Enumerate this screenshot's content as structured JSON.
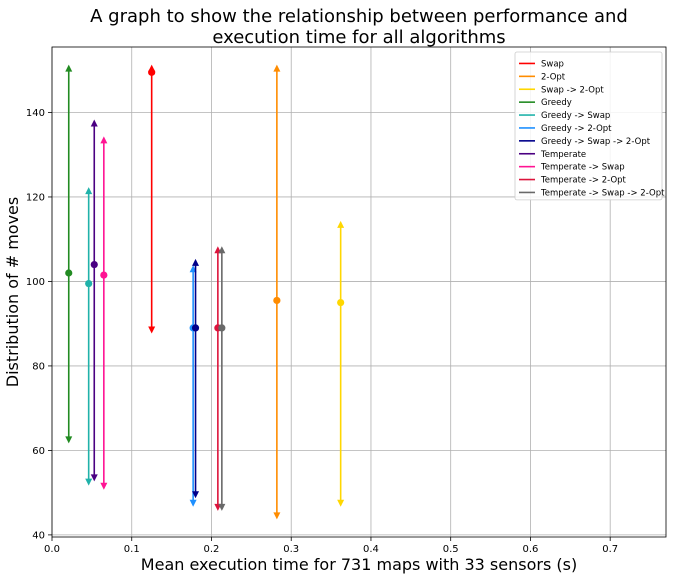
{
  "chart_data": {
    "type": "scatter",
    "title_line1": "A graph to show the relationship between performance and",
    "title_line2": "execution time for all algorithms",
    "xlabel": "Mean execution time for 731 maps with 33 sensors (s)",
    "ylabel": "Distribution of # moves",
    "xlim": [
      0.0,
      0.77
    ],
    "ylim": [
      39.5,
      155.5
    ],
    "xticks": [
      "0.0",
      "0.1",
      "0.2",
      "0.3",
      "0.4",
      "0.5",
      "0.6",
      "0.7"
    ],
    "xtick_values": [
      0.0,
      0.1,
      0.2,
      0.3,
      0.4,
      0.5,
      0.6,
      0.7
    ],
    "yticks": [
      "40",
      "60",
      "80",
      "100",
      "120",
      "140"
    ],
    "ytick_values": [
      40,
      60,
      80,
      100,
      120,
      140
    ],
    "grid": true,
    "legend_position": "top-right",
    "series": [
      {
        "name": "Swap",
        "color": "#ff0000",
        "x": 0.125,
        "mean": 149.5,
        "min": 88.5,
        "max": 150.5
      },
      {
        "name": "2-Opt",
        "color": "#ff8c00",
        "x": 0.282,
        "mean": 95.5,
        "min": 44.5,
        "max": 150.5
      },
      {
        "name": "Swap -> 2-Opt",
        "color": "#ffd700",
        "x": 0.362,
        "mean": 95.0,
        "min": 47.5,
        "max": 113.5
      },
      {
        "name": "Greedy",
        "color": "#228b22",
        "x": 0.021,
        "mean": 102.0,
        "min": 62.5,
        "max": 150.5
      },
      {
        "name": "Greedy -> Swap",
        "color": "#20b2aa",
        "x": 0.046,
        "mean": 99.5,
        "min": 52.5,
        "max": 121.5
      },
      {
        "name": "Greedy -> 2-Opt",
        "color": "#1e90ff",
        "x": 0.177,
        "mean": 89.0,
        "min": 47.5,
        "max": 103.0
      },
      {
        "name": "Greedy -> Swap -> 2-Opt",
        "color": "#00008b",
        "x": 0.18,
        "mean": 89.0,
        "min": 49.5,
        "max": 104.5
      },
      {
        "name": "Temperate",
        "color": "#4b0082",
        "x": 0.053,
        "mean": 104.0,
        "min": 53.5,
        "max": 137.5
      },
      {
        "name": "Temperate -> Swap",
        "color": "#ff1493",
        "x": 0.065,
        "mean": 101.5,
        "min": 51.5,
        "max": 133.5
      },
      {
        "name": "Temperate -> 2-Opt",
        "color": "#dc143c",
        "x": 0.208,
        "mean": 89.0,
        "min": 46.5,
        "max": 107.5
      },
      {
        "name": "Temperate -> Swap -> 2-Opt",
        "color": "#696969",
        "x": 0.213,
        "mean": 89.0,
        "min": 46.5,
        "max": 107.5
      }
    ]
  }
}
